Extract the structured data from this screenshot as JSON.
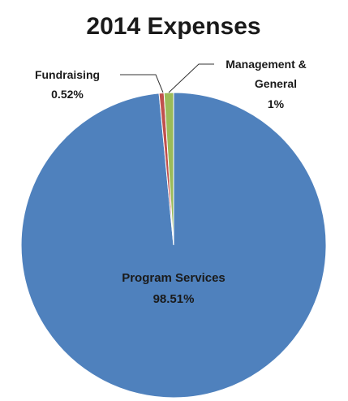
{
  "chart_data": {
    "type": "pie",
    "title": "2014 Expenses",
    "slices": [
      {
        "label": "Program Services",
        "value": 98.51,
        "value_label": "98.51%",
        "color": "#4F81BD"
      },
      {
        "label": "Fundraising",
        "value": 0.52,
        "value_label": "0.52%",
        "color": "#C0504D"
      },
      {
        "label": "Management & General",
        "label_lines": [
          "Management &",
          "General"
        ],
        "value": 1,
        "value_label": "1%",
        "color": "#9BBB59"
      }
    ],
    "legend": "none"
  }
}
